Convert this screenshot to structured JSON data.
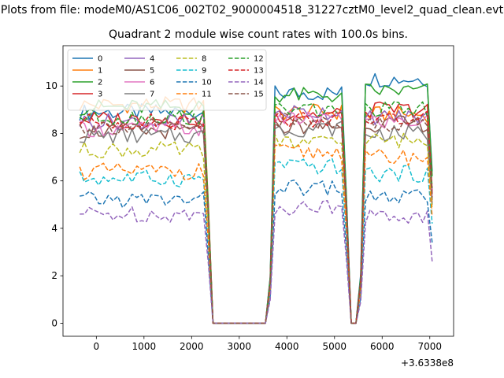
{
  "figure": {
    "suptitle": "Plots from file: modeM0/AS1C06_002T02_9000004518_31227cztM0_level2_quad_clean.evt",
    "title": "Quadrant 2 module wise count rates with 100.0s bins."
  },
  "chart_data": {
    "type": "line",
    "title": "Quadrant 2 module wise count rates with 100.0s bins.",
    "xlabel": "",
    "ylabel": "",
    "x_offset_label": "+3.6338e8",
    "xlim": [
      -700,
      7500
    ],
    "ylim": [
      -0.55,
      11.7
    ],
    "xticks": [
      0,
      1000,
      2000,
      3000,
      4000,
      5000,
      6000,
      7000
    ],
    "yticks": [
      0,
      2,
      4,
      6,
      8,
      10
    ],
    "grid": false,
    "legend": {
      "position": "top-left",
      "columns": 4
    },
    "x_start": -350,
    "x_step": 100,
    "segments": [
      {
        "from": -350,
        "to": 2250,
        "state": "on"
      },
      {
        "from": 2450,
        "to": 3550,
        "state": "zero"
      },
      {
        "from": 3750,
        "to": 5150,
        "state": "on"
      },
      {
        "from": 5350,
        "to": 5450,
        "state": "zero"
      },
      {
        "from": 5650,
        "to": 7050,
        "state": "on"
      }
    ],
    "series": [
      {
        "name": "0",
        "color": "#1f77b4",
        "dash": "solid",
        "levels": [
          8.9,
          9.7,
          10.3
        ],
        "final": 6.4
      },
      {
        "name": "1",
        "color": "#ff7f0e",
        "dash": "solid",
        "levels": [
          9.2,
          8.9,
          8.8
        ],
        "final": 5.0
      },
      {
        "name": "2",
        "color": "#2ca02c",
        "dash": "solid",
        "levels": [
          9.1,
          9.6,
          9.8
        ],
        "final": 6.2
      },
      {
        "name": "3",
        "color": "#d62728",
        "dash": "solid",
        "levels": [
          8.6,
          8.8,
          9.0
        ],
        "final": 5.6
      },
      {
        "name": "4",
        "color": "#9467bd",
        "dash": "solid",
        "levels": [
          8.5,
          8.9,
          8.7
        ],
        "final": 5.5
      },
      {
        "name": "5",
        "color": "#8c564b",
        "dash": "solid",
        "levels": [
          8.1,
          8.3,
          8.4
        ],
        "final": 5.2
      },
      {
        "name": "6",
        "color": "#e377c2",
        "dash": "solid",
        "levels": [
          8.2,
          8.6,
          8.5
        ],
        "final": 5.3
      },
      {
        "name": "7",
        "color": "#7f7f7f",
        "dash": "solid",
        "levels": [
          7.9,
          8.2,
          8.0
        ],
        "final": 5.0
      },
      {
        "name": "8",
        "color": "#bcbd22",
        "dash": "dashed",
        "levels": [
          7.3,
          7.6,
          7.7
        ],
        "final": 4.8
      },
      {
        "name": "9",
        "color": "#17becf",
        "dash": "dashed",
        "levels": [
          6.1,
          6.6,
          6.3
        ],
        "final": 4.2
      },
      {
        "name": "10",
        "color": "#1f77b4",
        "dash": "dashed",
        "levels": [
          5.2,
          5.7,
          5.3
        ],
        "final": 3.4
      },
      {
        "name": "11",
        "color": "#ff7f0e",
        "dash": "dashed",
        "levels": [
          6.4,
          7.2,
          7.0
        ],
        "final": 4.5
      },
      {
        "name": "12",
        "color": "#2ca02c",
        "dash": "dashed",
        "levels": [
          8.7,
          9.0,
          9.0
        ],
        "final": 5.7
      },
      {
        "name": "13",
        "color": "#d62728",
        "dash": "dashed",
        "levels": [
          8.5,
          8.6,
          8.6
        ],
        "final": 5.4
      },
      {
        "name": "14",
        "color": "#9467bd",
        "dash": "dashed",
        "levels": [
          4.6,
          4.9,
          4.5
        ],
        "final": 2.6
      },
      {
        "name": "15",
        "color": "#8c564b",
        "dash": "dashed",
        "levels": [
          8.3,
          8.5,
          8.4
        ],
        "final": 5.3
      }
    ]
  }
}
